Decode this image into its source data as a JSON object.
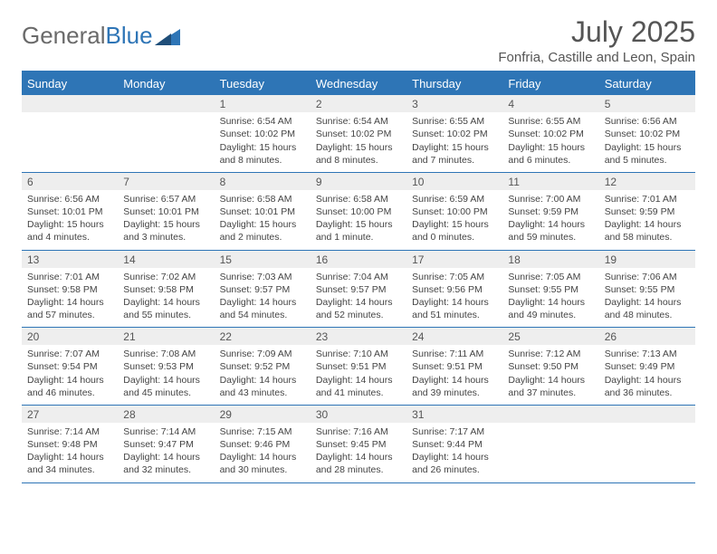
{
  "brand": {
    "part1": "General",
    "part2": "Blue"
  },
  "title": "July 2025",
  "location": "Fonfria, Castille and Leon, Spain",
  "colors": {
    "header_bar": "#2e75b6",
    "daynum_bg": "#eeeeee",
    "text": "#444444",
    "title_text": "#555555"
  },
  "dow": [
    "Sunday",
    "Monday",
    "Tuesday",
    "Wednesday",
    "Thursday",
    "Friday",
    "Saturday"
  ],
  "weeks": [
    [
      {
        "n": "",
        "sunrise": "",
        "sunset": "",
        "day_l1": "",
        "day_l2": ""
      },
      {
        "n": "",
        "sunrise": "",
        "sunset": "",
        "day_l1": "",
        "day_l2": ""
      },
      {
        "n": "1",
        "sunrise": "Sunrise: 6:54 AM",
        "sunset": "Sunset: 10:02 PM",
        "day_l1": "Daylight: 15 hours",
        "day_l2": "and 8 minutes."
      },
      {
        "n": "2",
        "sunrise": "Sunrise: 6:54 AM",
        "sunset": "Sunset: 10:02 PM",
        "day_l1": "Daylight: 15 hours",
        "day_l2": "and 8 minutes."
      },
      {
        "n": "3",
        "sunrise": "Sunrise: 6:55 AM",
        "sunset": "Sunset: 10:02 PM",
        "day_l1": "Daylight: 15 hours",
        "day_l2": "and 7 minutes."
      },
      {
        "n": "4",
        "sunrise": "Sunrise: 6:55 AM",
        "sunset": "Sunset: 10:02 PM",
        "day_l1": "Daylight: 15 hours",
        "day_l2": "and 6 minutes."
      },
      {
        "n": "5",
        "sunrise": "Sunrise: 6:56 AM",
        "sunset": "Sunset: 10:02 PM",
        "day_l1": "Daylight: 15 hours",
        "day_l2": "and 5 minutes."
      }
    ],
    [
      {
        "n": "6",
        "sunrise": "Sunrise: 6:56 AM",
        "sunset": "Sunset: 10:01 PM",
        "day_l1": "Daylight: 15 hours",
        "day_l2": "and 4 minutes."
      },
      {
        "n": "7",
        "sunrise": "Sunrise: 6:57 AM",
        "sunset": "Sunset: 10:01 PM",
        "day_l1": "Daylight: 15 hours",
        "day_l2": "and 3 minutes."
      },
      {
        "n": "8",
        "sunrise": "Sunrise: 6:58 AM",
        "sunset": "Sunset: 10:01 PM",
        "day_l1": "Daylight: 15 hours",
        "day_l2": "and 2 minutes."
      },
      {
        "n": "9",
        "sunrise": "Sunrise: 6:58 AM",
        "sunset": "Sunset: 10:00 PM",
        "day_l1": "Daylight: 15 hours",
        "day_l2": "and 1 minute."
      },
      {
        "n": "10",
        "sunrise": "Sunrise: 6:59 AM",
        "sunset": "Sunset: 10:00 PM",
        "day_l1": "Daylight: 15 hours",
        "day_l2": "and 0 minutes."
      },
      {
        "n": "11",
        "sunrise": "Sunrise: 7:00 AM",
        "sunset": "Sunset: 9:59 PM",
        "day_l1": "Daylight: 14 hours",
        "day_l2": "and 59 minutes."
      },
      {
        "n": "12",
        "sunrise": "Sunrise: 7:01 AM",
        "sunset": "Sunset: 9:59 PM",
        "day_l1": "Daylight: 14 hours",
        "day_l2": "and 58 minutes."
      }
    ],
    [
      {
        "n": "13",
        "sunrise": "Sunrise: 7:01 AM",
        "sunset": "Sunset: 9:58 PM",
        "day_l1": "Daylight: 14 hours",
        "day_l2": "and 57 minutes."
      },
      {
        "n": "14",
        "sunrise": "Sunrise: 7:02 AM",
        "sunset": "Sunset: 9:58 PM",
        "day_l1": "Daylight: 14 hours",
        "day_l2": "and 55 minutes."
      },
      {
        "n": "15",
        "sunrise": "Sunrise: 7:03 AM",
        "sunset": "Sunset: 9:57 PM",
        "day_l1": "Daylight: 14 hours",
        "day_l2": "and 54 minutes."
      },
      {
        "n": "16",
        "sunrise": "Sunrise: 7:04 AM",
        "sunset": "Sunset: 9:57 PM",
        "day_l1": "Daylight: 14 hours",
        "day_l2": "and 52 minutes."
      },
      {
        "n": "17",
        "sunrise": "Sunrise: 7:05 AM",
        "sunset": "Sunset: 9:56 PM",
        "day_l1": "Daylight: 14 hours",
        "day_l2": "and 51 minutes."
      },
      {
        "n": "18",
        "sunrise": "Sunrise: 7:05 AM",
        "sunset": "Sunset: 9:55 PM",
        "day_l1": "Daylight: 14 hours",
        "day_l2": "and 49 minutes."
      },
      {
        "n": "19",
        "sunrise": "Sunrise: 7:06 AM",
        "sunset": "Sunset: 9:55 PM",
        "day_l1": "Daylight: 14 hours",
        "day_l2": "and 48 minutes."
      }
    ],
    [
      {
        "n": "20",
        "sunrise": "Sunrise: 7:07 AM",
        "sunset": "Sunset: 9:54 PM",
        "day_l1": "Daylight: 14 hours",
        "day_l2": "and 46 minutes."
      },
      {
        "n": "21",
        "sunrise": "Sunrise: 7:08 AM",
        "sunset": "Sunset: 9:53 PM",
        "day_l1": "Daylight: 14 hours",
        "day_l2": "and 45 minutes."
      },
      {
        "n": "22",
        "sunrise": "Sunrise: 7:09 AM",
        "sunset": "Sunset: 9:52 PM",
        "day_l1": "Daylight: 14 hours",
        "day_l2": "and 43 minutes."
      },
      {
        "n": "23",
        "sunrise": "Sunrise: 7:10 AM",
        "sunset": "Sunset: 9:51 PM",
        "day_l1": "Daylight: 14 hours",
        "day_l2": "and 41 minutes."
      },
      {
        "n": "24",
        "sunrise": "Sunrise: 7:11 AM",
        "sunset": "Sunset: 9:51 PM",
        "day_l1": "Daylight: 14 hours",
        "day_l2": "and 39 minutes."
      },
      {
        "n": "25",
        "sunrise": "Sunrise: 7:12 AM",
        "sunset": "Sunset: 9:50 PM",
        "day_l1": "Daylight: 14 hours",
        "day_l2": "and 37 minutes."
      },
      {
        "n": "26",
        "sunrise": "Sunrise: 7:13 AM",
        "sunset": "Sunset: 9:49 PM",
        "day_l1": "Daylight: 14 hours",
        "day_l2": "and 36 minutes."
      }
    ],
    [
      {
        "n": "27",
        "sunrise": "Sunrise: 7:14 AM",
        "sunset": "Sunset: 9:48 PM",
        "day_l1": "Daylight: 14 hours",
        "day_l2": "and 34 minutes."
      },
      {
        "n": "28",
        "sunrise": "Sunrise: 7:14 AM",
        "sunset": "Sunset: 9:47 PM",
        "day_l1": "Daylight: 14 hours",
        "day_l2": "and 32 minutes."
      },
      {
        "n": "29",
        "sunrise": "Sunrise: 7:15 AM",
        "sunset": "Sunset: 9:46 PM",
        "day_l1": "Daylight: 14 hours",
        "day_l2": "and 30 minutes."
      },
      {
        "n": "30",
        "sunrise": "Sunrise: 7:16 AM",
        "sunset": "Sunset: 9:45 PM",
        "day_l1": "Daylight: 14 hours",
        "day_l2": "and 28 minutes."
      },
      {
        "n": "31",
        "sunrise": "Sunrise: 7:17 AM",
        "sunset": "Sunset: 9:44 PM",
        "day_l1": "Daylight: 14 hours",
        "day_l2": "and 26 minutes."
      },
      {
        "n": "",
        "sunrise": "",
        "sunset": "",
        "day_l1": "",
        "day_l2": ""
      },
      {
        "n": "",
        "sunrise": "",
        "sunset": "",
        "day_l1": "",
        "day_l2": ""
      }
    ]
  ]
}
